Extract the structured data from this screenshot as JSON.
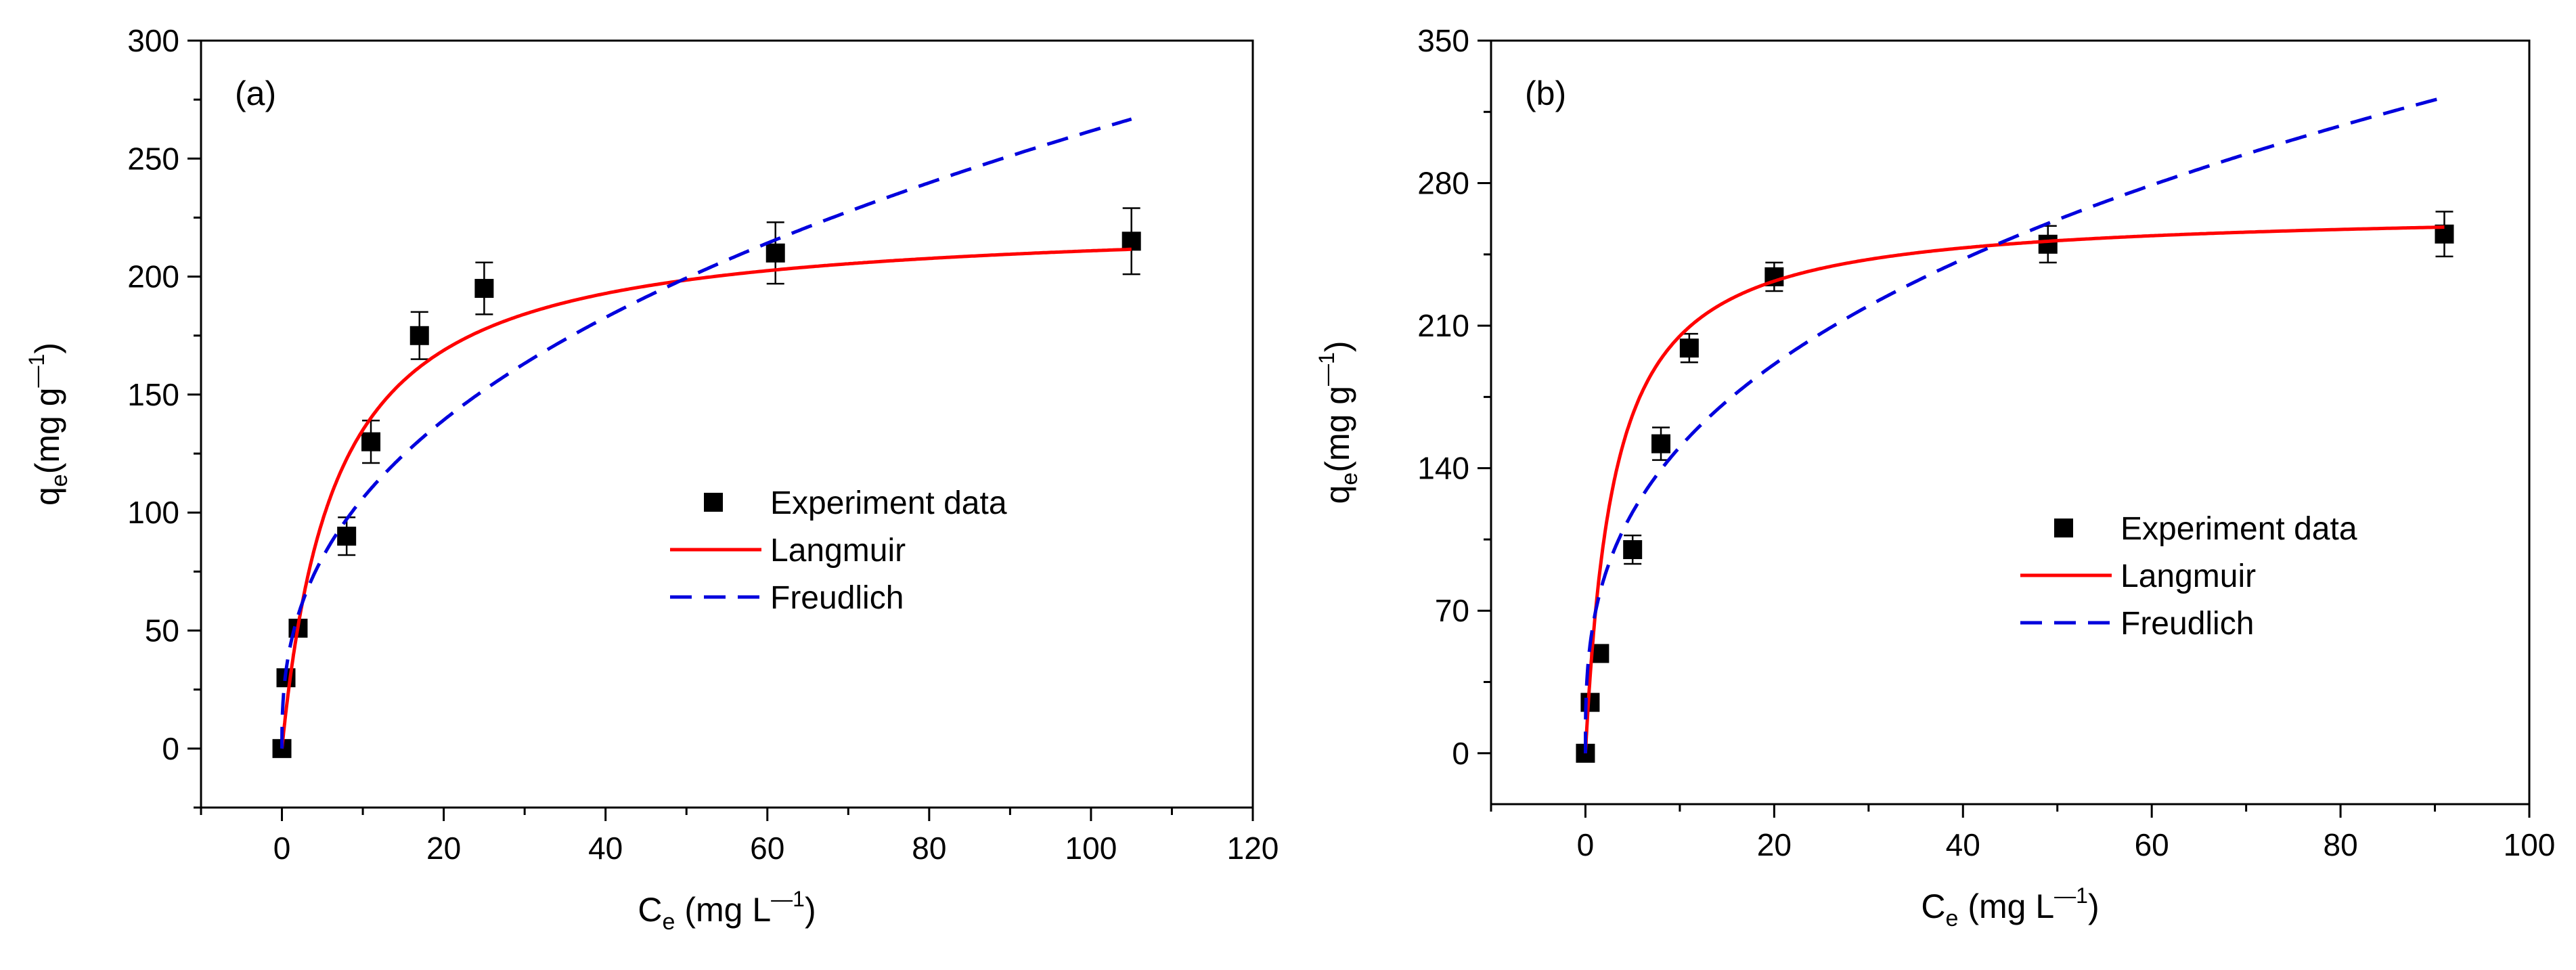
{
  "chart_data": [
    {
      "type": "scatter",
      "panel_label": "(a)",
      "xlabel": {
        "main": "C",
        "sub": "e",
        "rest": " (mg L",
        "sup": "—1",
        "close": ")"
      },
      "ylabel": {
        "main": "q",
        "sub": "e",
        "rest": "(mg g",
        "sup": "—1",
        "close": ")"
      },
      "xlim": [
        -10,
        120
      ],
      "ylim": [
        -25,
        300
      ],
      "xticks": [
        0,
        20,
        40,
        60,
        80,
        100,
        120
      ],
      "yticks": [
        0,
        50,
        100,
        150,
        200,
        250,
        300
      ],
      "legend": {
        "position": "center-right",
        "entries": [
          "Experiment data",
          "Langmuir",
          "Freudlich"
        ]
      },
      "series": [
        {
          "name": "Experiment data",
          "kind": "points",
          "color": "#000000",
          "x": [
            0,
            0.5,
            2,
            8,
            11,
            17,
            25,
            61,
            105
          ],
          "y": [
            0,
            30,
            51,
            90,
            130,
            175,
            195,
            210,
            215
          ],
          "err": [
            0,
            0,
            0,
            8,
            9,
            10,
            11,
            13,
            14
          ]
        },
        {
          "name": "Langmuir",
          "kind": "line",
          "color": "#ff0000",
          "dash": "solid",
          "model": "langmuir",
          "qmax": 225,
          "K": 0.15,
          "xmax": 105
        },
        {
          "name": "Freudlich",
          "kind": "line",
          "color": "#0000dd",
          "dash": "dashed",
          "model": "freundlich",
          "Kf": 43.0,
          "n": 2.55,
          "xmax": 105
        }
      ]
    },
    {
      "type": "scatter",
      "panel_label": "(b)",
      "xlabel": {
        "main": "C",
        "sub": "e",
        "rest": " (mg L",
        "sup": "—1",
        "close": ")"
      },
      "ylabel": {
        "main": "q",
        "sub": "e",
        "rest": "(mg g",
        "sup": "—1",
        "close": ")"
      },
      "xlim": [
        -10,
        100
      ],
      "ylim": [
        -25,
        350
      ],
      "xticks": [
        0,
        20,
        40,
        60,
        80,
        100
      ],
      "yticks": [
        0,
        70,
        140,
        210,
        280,
        350
      ],
      "legend": {
        "position": "center-right",
        "entries": [
          "Experiment data",
          "Langmuir",
          "Freudlich"
        ]
      },
      "series": [
        {
          "name": "Experiment data",
          "kind": "points",
          "color": "#000000",
          "x": [
            0,
            0.5,
            1.5,
            5,
            8,
            11,
            20,
            49,
            91
          ],
          "y": [
            0,
            25,
            49,
            100,
            152,
            199,
            234,
            250,
            255
          ],
          "err": [
            0,
            0,
            0,
            7,
            8,
            7,
            7,
            9,
            11
          ]
        },
        {
          "name": "Langmuir",
          "kind": "line",
          "color": "#ff0000",
          "dash": "solid",
          "model": "langmuir",
          "qmax": 267,
          "K": 0.33,
          "xmax": 91
        },
        {
          "name": "Freudlich",
          "kind": "line",
          "color": "#0000dd",
          "dash": "dashed",
          "model": "freundlich",
          "Kf": 68.0,
          "n": 2.9,
          "xmax": 91
        }
      ]
    }
  ]
}
